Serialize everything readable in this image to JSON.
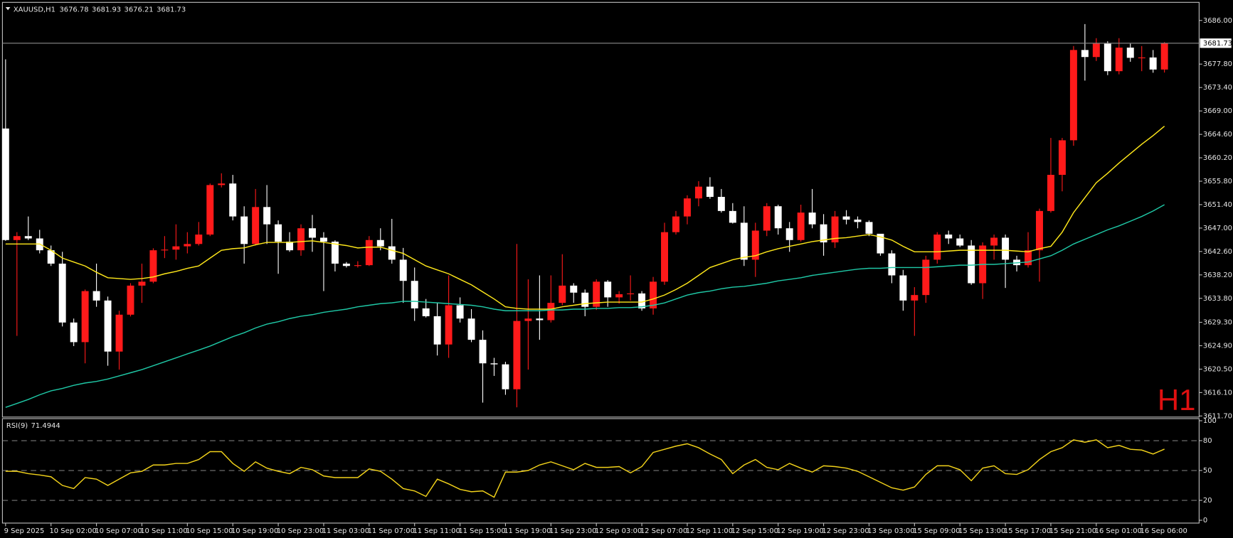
{
  "chart_data": [
    {
      "type": "candlestick",
      "symbol": "XAUUSD,H1",
      "timeframe": "H1",
      "categories": [
        "9 Sep 2025",
        null,
        null,
        null,
        "10 Sep 02:00",
        null,
        null,
        null,
        "10 Sep 07:00",
        null,
        null,
        null,
        "10 Sep 11:00",
        null,
        null,
        null,
        "10 Sep 15:00",
        null,
        null,
        null,
        "10 Sep 19:00",
        null,
        null,
        null,
        "10 Sep 23:00",
        null,
        null,
        null,
        "11 Sep 03:00",
        null,
        null,
        null,
        "11 Sep 07:00",
        null,
        null,
        null,
        "11 Sep 11:00",
        null,
        null,
        null,
        "11 Sep 15:00",
        null,
        null,
        null,
        "11 Sep 19:00",
        null,
        null,
        null,
        "11 Sep 23:00",
        null,
        null,
        null,
        "12 Sep 03:00",
        null,
        null,
        null,
        "12 Sep 07:00",
        null,
        null,
        null,
        "12 Sep 11:00",
        null,
        null,
        null,
        "12 Sep 15:00",
        null,
        null,
        null,
        "12 Sep 19:00",
        null,
        null,
        null,
        "12 Sep 23:00",
        null,
        null,
        null,
        "13 Sep 03:00",
        null,
        null,
        null,
        "15 Sep 09:00",
        null,
        null,
        null,
        "15 Sep 13:00",
        null,
        null,
        null,
        "15 Sep 17:00",
        null,
        null,
        null,
        "15 Sep 21:00",
        null,
        null,
        null,
        "16 Sep 01:00",
        null,
        null,
        null,
        "16 Sep 06:00",
        null,
        null
      ],
      "open": [
        3665.7,
        3644.75,
        3645.49,
        3645.05,
        3642.83,
        3640.32,
        3629.26,
        3625.57,
        3635.16,
        3633.39,
        3623.8,
        3630.73,
        3636.19,
        3636.93,
        3642.83,
        3642.95,
        3643.57,
        3644.01,
        3645.78,
        3655.08,
        3655.37,
        3649.18,
        3644.01,
        3650.95,
        3647.7,
        3644.45,
        3642.83,
        3646.96,
        3645.19,
        3644.45,
        3640.32,
        3639.88,
        3640.03,
        3644.75,
        3643.57,
        3641.06,
        3637.08,
        3631.91,
        3630.44,
        3625.13,
        3632.5,
        3630.0,
        3626.01,
        3621.59,
        3621.4,
        3616.72,
        3629.55,
        3630.0,
        3629.7,
        3632.95,
        3636.19,
        3634.87,
        3632.21,
        3636.93,
        3633.98,
        3634.57,
        3634.72,
        3631.91,
        3636.93,
        3646.23,
        3649.18,
        3652.57,
        3654.78,
        3652.86,
        3650.21,
        3648.0,
        3641.06,
        3646.52,
        3651.1,
        3646.96,
        3644.75,
        3649.91,
        3647.7,
        3644.31,
        3649.18,
        3648.59,
        3648.14,
        3645.93,
        3642.24,
        3638.11,
        3633.39,
        3634.42,
        3641.06,
        3645.78,
        3645.05,
        3643.72,
        3636.64,
        3643.72,
        3645.19,
        3641.06,
        3640.03,
        3642.83,
        3650.21,
        3657.0,
        3663.49,
        3680.45,
        3679.13,
        3681.64,
        3676.47,
        3680.9,
        3678.98,
        3679.05,
        3676.78
      ],
      "high": [
        3678.69,
        3646.23,
        3649.18,
        3646.67,
        3643.72,
        3642.54,
        3630.0,
        3635.46,
        3640.32,
        3634.13,
        3631.47,
        3636.64,
        3640.32,
        3643.2,
        3645.49,
        3647.7,
        3646.23,
        3648.14,
        3655.37,
        3657.29,
        3656.99,
        3651.09,
        3654.34,
        3655.08,
        3648.44,
        3646.23,
        3647.7,
        3649.47,
        3646.23,
        3644.7,
        3640.62,
        3640.77,
        3645.49,
        3646.96,
        3648.73,
        3643.27,
        3639.59,
        3633.68,
        3632.95,
        3638.11,
        3633.98,
        3631.77,
        3627.78,
        3622.62,
        3621.88,
        3644.01,
        3637.37,
        3638.11,
        3638.11,
        3642.09,
        3636.64,
        3635.46,
        3637.37,
        3637.23,
        3635.16,
        3638.11,
        3635.16,
        3637.82,
        3648.0,
        3650.21,
        3653.16,
        3655.81,
        3656.55,
        3654.34,
        3651.69,
        3651.09,
        3648.0,
        3651.69,
        3651.39,
        3648.14,
        3651.39,
        3654.34,
        3649.62,
        3650.21,
        3650.36,
        3649.18,
        3648.44,
        3645.78,
        3642.83,
        3639.14,
        3635.9,
        3641.8,
        3646.23,
        3646.52,
        3645.78,
        3644.75,
        3644.31,
        3645.78,
        3645.78,
        3641.8,
        3646.23,
        3650.65,
        3663.93,
        3663.93,
        3681.19,
        3685.32,
        3682.67,
        3682.08,
        3682.67,
        3681.64,
        3681.19,
        3680.45,
        3681.93
      ],
      "low": [
        3644.6,
        3626.75,
        3644.75,
        3642.24,
        3639.88,
        3628.52,
        3624.83,
        3621.59,
        3632.21,
        3621.14,
        3620.41,
        3630.4,
        3632.95,
        3636.64,
        3641.36,
        3641.06,
        3642.24,
        3643.72,
        3645.49,
        3654.63,
        3648.44,
        3640.32,
        3643.72,
        3644.01,
        3638.41,
        3642.54,
        3641.8,
        3642.54,
        3635.16,
        3638.85,
        3639.59,
        3639.59,
        3639.88,
        3642.83,
        3640.32,
        3632.95,
        3629.55,
        3630.2,
        3623.06,
        3622.62,
        3629.26,
        3625.57,
        3614.21,
        3619.23,
        3615.68,
        3613.32,
        3620.41,
        3626.01,
        3629.26,
        3632.5,
        3632.95,
        3630.44,
        3631.62,
        3632.21,
        3632.8,
        3633.39,
        3631.47,
        3630.73,
        3636.34,
        3645.78,
        3647.7,
        3651.09,
        3652.5,
        3649.91,
        3647.85,
        3639.88,
        3637.82,
        3645.49,
        3645.78,
        3642.54,
        3644.46,
        3646.96,
        3641.8,
        3643.27,
        3647.7,
        3646.96,
        3645.49,
        3641.8,
        3636.64,
        3631.47,
        3626.75,
        3632.95,
        3640.32,
        3644.01,
        3643.42,
        3636.34,
        3633.68,
        3641.06,
        3635.75,
        3638.85,
        3639.59,
        3636.93,
        3649.91,
        3653.9,
        3662.46,
        3674.7,
        3678.39,
        3675.73,
        3675.88,
        3678.24,
        3676.47,
        3676.18,
        3676.21
      ],
      "close": [
        3644.75,
        3645.49,
        3645.05,
        3642.83,
        3640.32,
        3629.26,
        3625.57,
        3635.16,
        3633.39,
        3623.8,
        3630.73,
        3636.19,
        3636.93,
        3642.83,
        3642.95,
        3643.57,
        3644.01,
        3645.78,
        3655.08,
        3655.37,
        3649.18,
        3644.01,
        3650.95,
        3647.7,
        3644.45,
        3642.83,
        3646.96,
        3645.19,
        3644.45,
        3640.32,
        3639.88,
        3640.03,
        3644.75,
        3643.57,
        3641.06,
        3637.08,
        3631.91,
        3630.44,
        3625.13,
        3632.5,
        3630.0,
        3626.01,
        3621.59,
        3621.4,
        3616.72,
        3629.55,
        3630.0,
        3629.7,
        3632.95,
        3636.19,
        3634.87,
        3632.21,
        3636.93,
        3633.98,
        3634.57,
        3634.72,
        3631.91,
        3636.93,
        3646.23,
        3649.18,
        3652.57,
        3654.78,
        3652.86,
        3650.21,
        3648.0,
        3641.06,
        3646.52,
        3651.1,
        3646.96,
        3644.75,
        3649.91,
        3647.7,
        3644.31,
        3649.18,
        3648.59,
        3648.14,
        3645.93,
        3642.24,
        3638.11,
        3633.39,
        3634.42,
        3641.06,
        3645.78,
        3645.05,
        3643.72,
        3636.64,
        3643.72,
        3645.19,
        3641.06,
        3640.03,
        3642.83,
        3650.21,
        3657.0,
        3663.49,
        3680.45,
        3679.13,
        3681.64,
        3676.47,
        3680.9,
        3678.98,
        3679.05,
        3676.78,
        3681.73
      ],
      "up_color": "#ff1a1a",
      "down_color": "#ffffff",
      "price_line_color": "#8c8c8c",
      "series": [
        {
          "color": "#ffe81a",
          "values": [
            3644.01,
            3644.01,
            3644.01,
            3644.01,
            3642.83,
            3641.36,
            3640.62,
            3639.88,
            3638.7,
            3637.67,
            3637.52,
            3637.37,
            3637.52,
            3637.82,
            3638.41,
            3638.85,
            3639.44,
            3639.88,
            3641.36,
            3642.83,
            3643.13,
            3643.27,
            3643.86,
            3644.31,
            3644.31,
            3644.31,
            3644.46,
            3644.6,
            3644.31,
            3644.01,
            3643.72,
            3643.27,
            3643.42,
            3643.42,
            3642.83,
            3642.24,
            3641.06,
            3639.88,
            3639.14,
            3638.41,
            3637.37,
            3636.34,
            3635.01,
            3633.68,
            3632.21,
            3631.91,
            3631.77,
            3631.77,
            3631.77,
            3632.21,
            3632.5,
            3632.8,
            3632.95,
            3633.09,
            3633.09,
            3633.09,
            3633.09,
            3633.68,
            3634.42,
            3635.46,
            3636.64,
            3638.11,
            3639.59,
            3640.32,
            3641.06,
            3641.5,
            3641.8,
            3642.54,
            3643.13,
            3643.57,
            3644.01,
            3644.46,
            3644.75,
            3645.05,
            3645.19,
            3645.49,
            3645.78,
            3645.34,
            3644.75,
            3643.57,
            3642.54,
            3642.54,
            3642.54,
            3642.68,
            3642.83,
            3642.83,
            3642.83,
            3642.83,
            3642.83,
            3642.68,
            3642.54,
            3643.13,
            3643.57,
            3646.23,
            3649.91,
            3652.72,
            3655.52,
            3657.29,
            3659.21,
            3660.98,
            3662.75,
            3664.37,
            3666.14
          ]
        },
        {
          "color": "#1fc8a6",
          "values": [
            3613.32,
            3614.06,
            3614.8,
            3615.68,
            3616.42,
            3616.87,
            3617.46,
            3617.9,
            3618.19,
            3618.64,
            3619.23,
            3619.82,
            3620.41,
            3621.14,
            3621.88,
            3622.62,
            3623.36,
            3624.09,
            3624.83,
            3625.72,
            3626.6,
            3627.34,
            3628.23,
            3628.96,
            3629.41,
            3630.0,
            3630.44,
            3630.73,
            3631.18,
            3631.47,
            3631.77,
            3632.21,
            3632.5,
            3632.8,
            3632.95,
            3633.24,
            3633.24,
            3633.09,
            3632.95,
            3632.8,
            3632.65,
            3632.5,
            3632.21,
            3631.77,
            3631.47,
            3631.47,
            3631.47,
            3631.47,
            3631.62,
            3631.62,
            3631.77,
            3631.77,
            3631.91,
            3631.91,
            3632.06,
            3632.06,
            3632.21,
            3632.5,
            3632.95,
            3633.68,
            3634.42,
            3634.87,
            3635.16,
            3635.6,
            3635.9,
            3636.05,
            3636.34,
            3636.64,
            3637.08,
            3637.37,
            3637.67,
            3638.11,
            3638.41,
            3638.7,
            3639.0,
            3639.29,
            3639.44,
            3639.44,
            3639.59,
            3639.59,
            3639.59,
            3639.59,
            3639.73,
            3639.88,
            3640.03,
            3640.03,
            3640.18,
            3640.18,
            3640.32,
            3640.47,
            3640.62,
            3641.21,
            3641.8,
            3642.83,
            3644.01,
            3644.9,
            3645.78,
            3646.67,
            3647.41,
            3648.29,
            3649.18,
            3650.21,
            3651.39
          ]
        }
      ],
      "ylim": [
        3611.5,
        3689.4
      ],
      "yticks": [
        {
          "value": 3686.0,
          "label": "3686.00"
        },
        {
          "value": 3677.8,
          "label": "3677.80"
        },
        {
          "value": 3673.4,
          "label": "3673.40"
        },
        {
          "value": 3669.0,
          "label": "3669.00"
        },
        {
          "value": 3664.6,
          "label": "3664.60"
        },
        {
          "value": 3660.2,
          "label": "3660.20"
        },
        {
          "value": 3655.8,
          "label": "3655.80"
        },
        {
          "value": 3651.4,
          "label": "3651.40"
        },
        {
          "value": 3647.0,
          "label": "3647.00"
        },
        {
          "value": 3642.6,
          "label": "3642.60"
        },
        {
          "value": 3638.2,
          "label": "3638.20"
        },
        {
          "value": 3633.8,
          "label": "3633.80"
        },
        {
          "value": 3629.3,
          "label": "3629.30"
        },
        {
          "value": 3624.9,
          "label": "3624.90"
        },
        {
          "value": 3620.5,
          "label": "3620.50"
        },
        {
          "value": 3616.1,
          "label": "3616.10"
        },
        {
          "value": 3611.7,
          "label": "3611.70"
        }
      ],
      "grid": false
    },
    {
      "type": "line",
      "title": "RSI(9)",
      "color": "#f2d21a",
      "values": [
        49.21,
        49.21,
        46.84,
        45.5,
        43.68,
        35.0,
        31.84,
        42.89,
        41.32,
        35.0,
        41.32,
        47.63,
        49.21,
        55.53,
        55.53,
        57.11,
        57.11,
        61.05,
        68.95,
        68.95,
        57.11,
        49.21,
        58.68,
        52.37,
        49.21,
        46.84,
        53.16,
        50.79,
        44.47,
        42.89,
        42.89,
        42.89,
        51.58,
        49.21,
        41.32,
        31.84,
        29.47,
        23.95,
        41.32,
        36.58,
        31.05,
        28.68,
        29.47,
        23.16,
        48.42,
        48.42,
        50.0,
        55.53,
        58.68,
        54.74,
        50.79,
        57.11,
        53.16,
        53.16,
        53.95,
        47.63,
        53.95,
        68.16,
        71.32,
        74.47,
        76.84,
        72.89,
        66.58,
        61.05,
        46.84,
        55.53,
        61.05,
        53.16,
        50.79,
        57.11,
        52.37,
        48.42,
        54.74,
        53.95,
        52.37,
        49.21,
        43.68,
        38.16,
        32.63,
        30.26,
        33.42,
        46.05,
        54.74,
        54.74,
        50.79,
        39.74,
        52.37,
        54.74,
        46.84,
        46.05,
        50.79,
        61.05,
        68.95,
        72.89,
        80.79,
        78.42,
        80.79,
        72.89,
        75.26,
        71.32,
        70.53,
        66.58,
        71.4944
      ],
      "ylim": [
        0,
        100
      ],
      "yticks": [
        0,
        20,
        50,
        80,
        100
      ],
      "grid": "dashed"
    }
  ]
}
